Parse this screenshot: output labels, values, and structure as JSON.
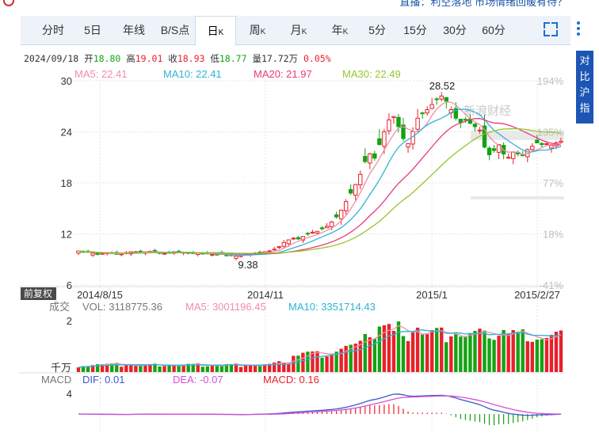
{
  "top_ticker": "直播：利空落地  市场情绪回暖有待？",
  "tabs": [
    {
      "label": "分时",
      "sub": ""
    },
    {
      "label": "5日",
      "sub": ""
    },
    {
      "label": "年线",
      "sub": ""
    },
    {
      "label": "B/S点",
      "sub": ""
    },
    {
      "label": "日",
      "sub": "K"
    },
    {
      "label": "周",
      "sub": "K"
    },
    {
      "label": "月",
      "sub": "K"
    },
    {
      "label": "年",
      "sub": "K"
    },
    {
      "label": "5分",
      "sub": ""
    },
    {
      "label": "15分",
      "sub": ""
    },
    {
      "label": "30分",
      "sub": ""
    },
    {
      "label": "60分",
      "sub": ""
    }
  ],
  "active_tab": "日K",
  "side_button": "对比沪指",
  "info": {
    "date": "2024/09/18",
    "open_label": "开",
    "open": "18.80",
    "high_label": "高",
    "high": "19.01",
    "close_label": "收",
    "close": "18.93",
    "low_label": "低",
    "low": "18.77",
    "vol_label": "量",
    "vol": "17.72万",
    "change": "0.05%"
  },
  "ma_legend": {
    "ma5": "MA5: 22.41",
    "ma10": "MA10: 22.41",
    "ma20": "MA20: 21.97",
    "ma30": "MA30: 22.49"
  },
  "watermark": "新浪财经",
  "adjust_label": "前复权",
  "volume_legend": {
    "label": "成交",
    "vol": "VOL: 3118775.36",
    "ma5": "MA5: 3001196.45",
    "ma10": "MA10: 3351714.43"
  },
  "volume_unit": "千万",
  "macd_legend": {
    "label": "MACD",
    "dif": "DIF: 0.01",
    "dea": "DEA: -0.07",
    "macd": "MACD: 0.16"
  },
  "colors": {
    "up": "#e8202a",
    "down": "#13a313",
    "ma5": "#ef8fa8",
    "ma10": "#2fb3d4",
    "ma20": "#e83a7f",
    "ma30": "#95c62d",
    "dif": "#3c58c9",
    "dea": "#d74fd8",
    "accent": "#1c55b4"
  },
  "chart_data": [
    {
      "type": "candlestick",
      "title": "",
      "x_ticks": [
        "2014/8/15",
        "2014/11",
        "2015/1",
        "2015/2/27"
      ],
      "y_ticks": [
        6,
        12,
        18,
        24,
        30
      ],
      "ylim": [
        6,
        30
      ],
      "pct_ticks": [
        "194%",
        "135%",
        "77%",
        "18%",
        "-41%"
      ],
      "annotations": {
        "high": "28.52",
        "low": "9.38"
      },
      "approx_close": [
        10,
        9.9,
        9.85,
        9.75,
        9.6,
        9.7,
        9.8,
        9.7,
        9.6,
        9.65,
        9.8,
        9.9,
        9.9,
        9.85,
        9.9,
        9.95,
        9.9,
        9.8,
        9.7,
        9.8,
        9.9,
        9.9,
        9.85,
        9.75,
        9.7,
        9.75,
        9.7,
        9.65,
        9.6,
        9.55,
        9.6,
        9.5,
        9.45,
        9.4,
        9.45,
        9.6,
        9.7,
        9.75,
        9.8,
        9.9,
        10,
        10.2,
        10.5,
        11,
        11.3,
        11.5,
        11.4,
        11.7,
        12,
        12.2,
        12.3,
        12.6,
        12.9,
        13.4,
        14,
        14.8,
        15.8,
        16.8,
        17.8,
        19,
        20.5,
        21.4,
        20.9,
        22.5,
        24,
        25.4,
        25.8,
        24.6,
        23.2,
        22.6,
        24,
        25.6,
        26.2,
        26.6,
        27.2,
        27.8,
        28.2,
        27.6,
        26.6,
        25.6,
        25.1,
        25.4,
        25,
        24.6,
        24.2,
        22.2,
        21.3,
        21.8,
        22.5,
        21.4,
        21,
        21.6,
        21.4,
        21.2,
        21.9,
        22.3,
        22.7,
        22.5,
        22.6,
        22.4,
        22.7,
        22.9
      ]
    },
    {
      "type": "bar",
      "title": "成交",
      "y_ticks": [
        2
      ],
      "unit": "千万"
    },
    {
      "type": "bar",
      "title": "MACD",
      "y_ticks": [
        4
      ]
    }
  ]
}
